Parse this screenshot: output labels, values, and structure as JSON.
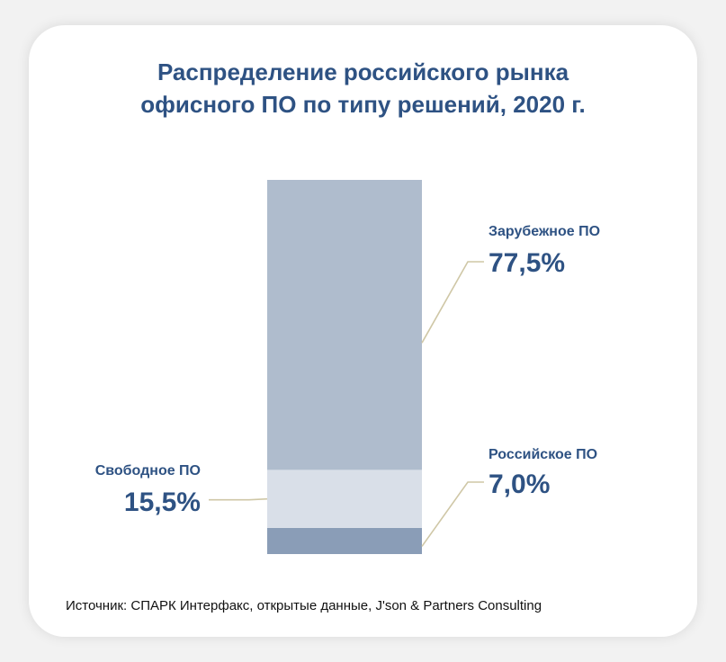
{
  "title_lines": [
    "Распределение российского рынка",
    "офисного ПО по типу решений, 2020 г."
  ],
  "source": "Источник: СПАРК Интерфакс, открытые данные, J'son & Partners Consulting",
  "chart_data": {
    "type": "bar",
    "stacked": true,
    "unit": "%",
    "categories": [
      ""
    ],
    "series": [
      {
        "name": "Российское ПО",
        "value": 7.0,
        "value_label": "7,0%",
        "color": "#8a9db7"
      },
      {
        "name": "Свободное ПО",
        "value": 15.5,
        "value_label": "15,5%",
        "color": "#d9dfe8"
      },
      {
        "name": "Зарубежное ПО",
        "value": 77.5,
        "value_label": "77,5%",
        "color": "#afbccd"
      }
    ],
    "ylim": [
      0,
      100
    ],
    "grid": false,
    "legend": "callout-labels"
  }
}
